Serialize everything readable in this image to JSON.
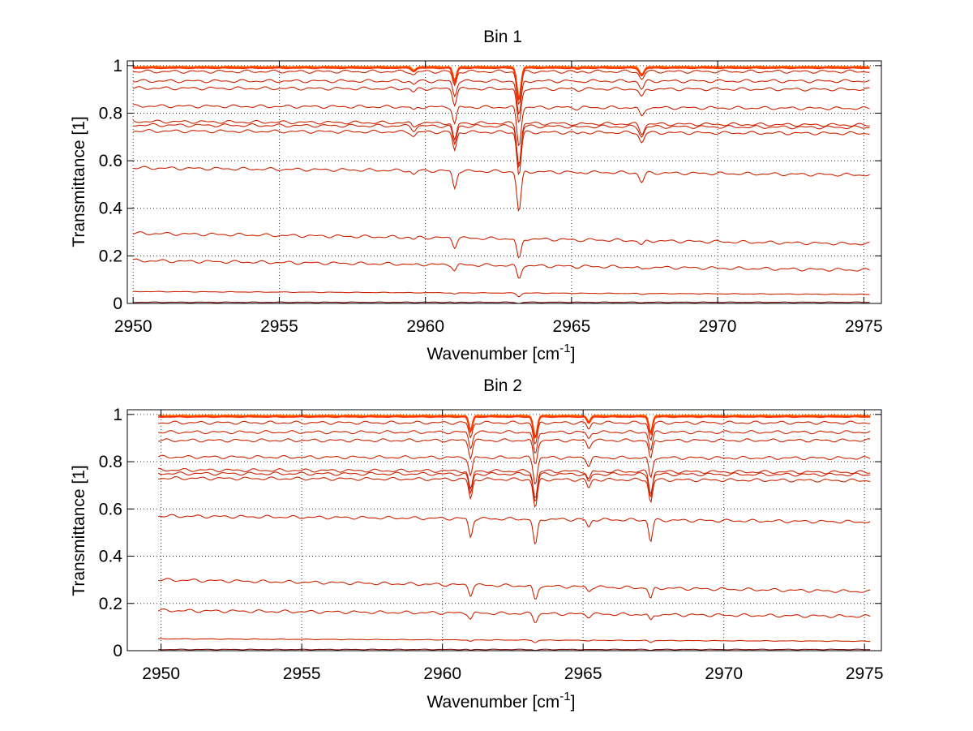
{
  "chart_data": [
    {
      "type": "line",
      "title": "Bin 1",
      "xlabel": "Wavenumber [cm",
      "xlabel_superscript": "-1",
      "xlabel_suffix": "]",
      "ylabel": "Transmittance [1]",
      "xlim": [
        2949.8,
        2975.6
      ],
      "ylim": [
        0,
        1.02
      ],
      "xticks": [
        2950,
        2955,
        2960,
        2965,
        2970,
        2975
      ],
      "yticks": [
        0,
        0.2,
        0.4,
        0.6,
        0.8,
        1
      ],
      "ytick_labels": [
        "0",
        "0.2",
        "0.4",
        "0.6",
        "0.8",
        "1"
      ],
      "grid": true,
      "x_start": 2950,
      "x_end": 2975.2,
      "series": [
        {
          "color": "#ff6a00",
          "values": {
            "baseline_start": 0.995,
            "baseline_end": 0.995
          }
        },
        {
          "color": "#ff3300",
          "values": {
            "baseline_start": 0.99,
            "baseline_end": 0.99
          }
        },
        {
          "color": "#cc2200",
          "values": {
            "baseline_start": 0.975,
            "baseline_end": 0.975
          }
        },
        {
          "color": "#cc2200",
          "values": {
            "baseline_start": 0.935,
            "baseline_end": 0.935
          }
        },
        {
          "color": "#cc2200",
          "values": {
            "baseline_start": 0.905,
            "baseline_end": 0.9
          }
        },
        {
          "color": "#cc2200",
          "values": {
            "baseline_start": 0.83,
            "baseline_end": 0.82
          }
        },
        {
          "color": "#cc2200",
          "values": {
            "baseline_start": 0.765,
            "baseline_end": 0.75
          }
        },
        {
          "color": "#cc2200",
          "values": {
            "baseline_start": 0.75,
            "baseline_end": 0.74
          }
        },
        {
          "color": "#cc2200",
          "values": {
            "baseline_start": 0.725,
            "baseline_end": 0.715
          }
        },
        {
          "color": "#cc2200",
          "values": {
            "baseline_start": 0.57,
            "baseline_end": 0.54
          }
        },
        {
          "color": "#cc2200",
          "values": {
            "baseline_start": 0.295,
            "baseline_end": 0.25
          }
        },
        {
          "color": "#cc2200",
          "values": {
            "baseline_start": 0.18,
            "baseline_end": 0.14
          }
        },
        {
          "color": "#cc2200",
          "values": {
            "baseline_start": 0.05,
            "baseline_end": 0.038
          }
        },
        {
          "color": "#7a1010",
          "values": {
            "baseline_start": 0.005,
            "baseline_end": 0.005
          }
        }
      ],
      "absorption_lines": [
        {
          "x": 2961.0,
          "depth": 0.13,
          "width": 0.09
        },
        {
          "x": 2963.2,
          "depth": 0.3,
          "width": 0.1
        },
        {
          "x": 2967.4,
          "depth": 0.07,
          "width": 0.11
        },
        {
          "x": 2959.6,
          "depth": 0.03,
          "width": 0.1
        },
        {
          "x": 2965.2,
          "depth": 0.01,
          "width": 0.1
        }
      ]
    },
    {
      "type": "line",
      "title": "Bin 2",
      "xlabel": "Wavenumber [cm",
      "xlabel_superscript": "-1",
      "xlabel_suffix": "]",
      "ylabel": "Transmittance [1]",
      "xlim": [
        2948.8,
        2975.6
      ],
      "ylim": [
        0,
        1.02
      ],
      "xticks": [
        2950,
        2955,
        2960,
        2965,
        2970,
        2975
      ],
      "yticks": [
        0,
        0.2,
        0.4,
        0.6,
        0.8,
        1
      ],
      "ytick_labels": [
        "0",
        "0.2",
        "0.4",
        "0.6",
        "0.8",
        "1"
      ],
      "grid": true,
      "x_start": 2949.9,
      "x_end": 2975.2,
      "series": [
        {
          "color": "#ff6a00",
          "values": {
            "baseline_start": 0.995,
            "baseline_end": 0.995
          }
        },
        {
          "color": "#ff3300",
          "values": {
            "baseline_start": 0.99,
            "baseline_end": 0.99
          }
        },
        {
          "color": "#cc2200",
          "values": {
            "baseline_start": 0.965,
            "baseline_end": 0.965
          }
        },
        {
          "color": "#cc2200",
          "values": {
            "baseline_start": 0.925,
            "baseline_end": 0.925
          }
        },
        {
          "color": "#cc2200",
          "values": {
            "baseline_start": 0.89,
            "baseline_end": 0.89
          }
        },
        {
          "color": "#cc2200",
          "values": {
            "baseline_start": 0.82,
            "baseline_end": 0.815
          }
        },
        {
          "color": "#cc2200",
          "values": {
            "baseline_start": 0.765,
            "baseline_end": 0.755
          }
        },
        {
          "color": "#cc2200",
          "values": {
            "baseline_start": 0.75,
            "baseline_end": 0.745
          }
        },
        {
          "color": "#cc2200",
          "values": {
            "baseline_start": 0.73,
            "baseline_end": 0.72
          }
        },
        {
          "color": "#cc2200",
          "values": {
            "baseline_start": 0.57,
            "baseline_end": 0.545
          }
        },
        {
          "color": "#cc2200",
          "values": {
            "baseline_start": 0.3,
            "baseline_end": 0.25
          }
        },
        {
          "color": "#cc2200",
          "values": {
            "baseline_start": 0.17,
            "baseline_end": 0.145
          }
        },
        {
          "color": "#cc2200",
          "values": {
            "baseline_start": 0.05,
            "baseline_end": 0.04
          }
        },
        {
          "color": "#7a1010",
          "values": {
            "baseline_start": 0.005,
            "baseline_end": 0.005
          }
        }
      ],
      "absorption_lines": [
        {
          "x": 2961.0,
          "depth": 0.14,
          "width": 0.09
        },
        {
          "x": 2963.3,
          "depth": 0.2,
          "width": 0.1
        },
        {
          "x": 2965.2,
          "depth": 0.06,
          "width": 0.09
        },
        {
          "x": 2967.4,
          "depth": 0.16,
          "width": 0.09
        }
      ]
    }
  ]
}
